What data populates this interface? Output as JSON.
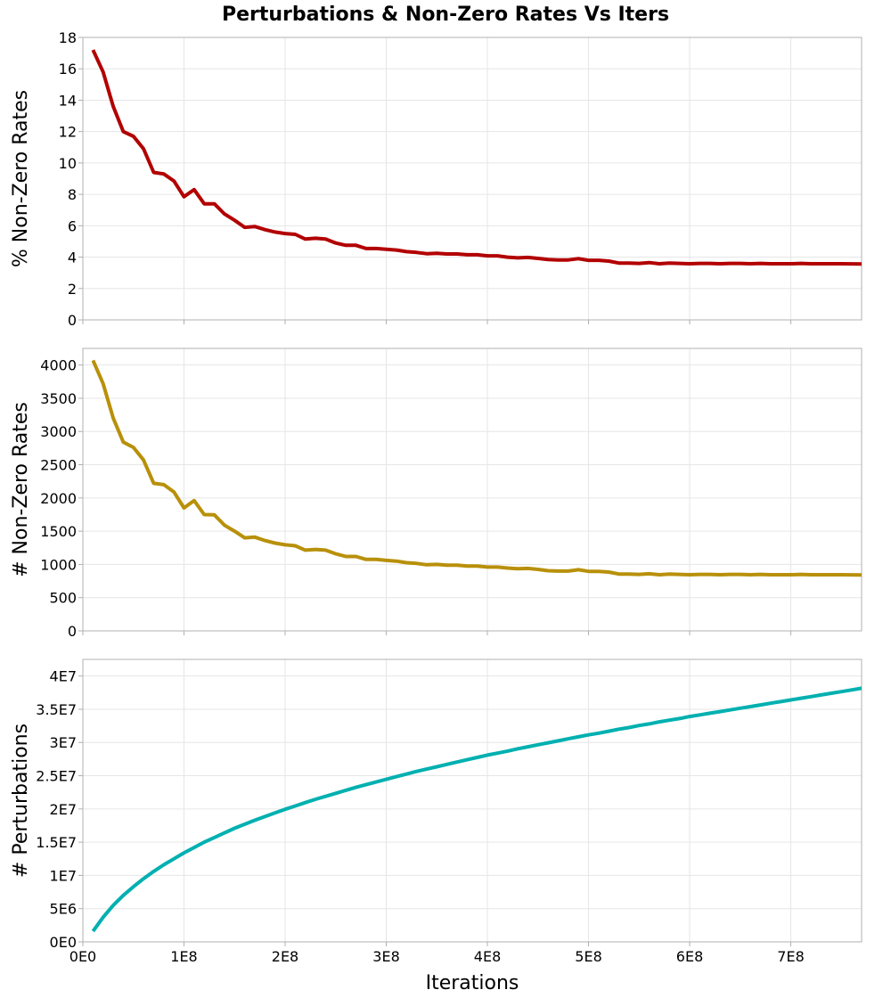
{
  "chart_data": {
    "type": "line",
    "title": "Perturbations & Non-Zero Rates Vs Iters",
    "xlabel": "Iterations",
    "xlim": [
      0,
      770000000
    ],
    "x_ticks": [
      0,
      100000000,
      200000000,
      300000000,
      400000000,
      500000000,
      600000000,
      700000000
    ],
    "x_tick_labels": [
      "0E0",
      "1E8",
      "2E8",
      "3E8",
      "4E8",
      "5E8",
      "6E8",
      "7E8"
    ],
    "x": [
      10000000,
      20000000,
      30000000,
      40000000,
      50000000,
      60000000,
      70000000,
      80000000,
      90000000,
      100000000,
      110000000,
      120000000,
      130000000,
      140000000,
      150000000,
      160000000,
      170000000,
      180000000,
      190000000,
      200000000,
      210000000,
      220000000,
      230000000,
      240000000,
      250000000,
      260000000,
      270000000,
      280000000,
      290000000,
      300000000,
      310000000,
      320000000,
      330000000,
      340000000,
      350000000,
      360000000,
      370000000,
      380000000,
      390000000,
      400000000,
      410000000,
      420000000,
      430000000,
      440000000,
      450000000,
      460000000,
      470000000,
      480000000,
      490000000,
      500000000,
      510000000,
      520000000,
      530000000,
      540000000,
      550000000,
      560000000,
      570000000,
      580000000,
      590000000,
      600000000,
      610000000,
      620000000,
      630000000,
      640000000,
      650000000,
      660000000,
      670000000,
      680000000,
      690000000,
      700000000,
      710000000,
      720000000,
      730000000,
      740000000,
      750000000,
      760000000,
      770000000
    ],
    "panels": [
      {
        "id": "pct-nonzero",
        "ylabel": "% Non-Zero Rates",
        "ylim": [
          0,
          18
        ],
        "y_ticks": [
          0,
          2,
          4,
          6,
          8,
          10,
          12,
          14,
          16,
          18
        ],
        "y_tick_labels": [
          "0",
          "2",
          "4",
          "6",
          "8",
          "10",
          "12",
          "14",
          "16",
          "18"
        ],
        "color": "#b20000",
        "series": [
          {
            "name": "% Non-Zero Rates",
            "values": [
              17.2,
              15.8,
              13.6,
              12.0,
              11.7,
              10.9,
              9.4,
              9.3,
              8.85,
              7.85,
              8.3,
              7.4,
              7.4,
              6.75,
              6.35,
              5.9,
              5.95,
              5.75,
              5.6,
              5.5,
              5.45,
              5.15,
              5.2,
              5.15,
              4.9,
              4.75,
              4.75,
              4.55,
              4.55,
              4.5,
              4.45,
              4.35,
              4.3,
              4.22,
              4.25,
              4.2,
              4.2,
              4.15,
              4.15,
              4.08,
              4.08,
              4.0,
              3.95,
              3.98,
              3.92,
              3.85,
              3.82,
              3.82,
              3.9,
              3.8,
              3.8,
              3.75,
              3.62,
              3.62,
              3.6,
              3.65,
              3.58,
              3.62,
              3.6,
              3.58,
              3.6,
              3.6,
              3.58,
              3.6,
              3.6,
              3.58,
              3.6,
              3.58,
              3.58,
              3.58,
              3.6,
              3.58,
              3.58,
              3.58,
              3.58,
              3.57,
              3.56
            ]
          }
        ]
      },
      {
        "id": "count-nonzero",
        "ylabel": "# Non-Zero Rates",
        "ylim": [
          0,
          4250
        ],
        "y_ticks": [
          0,
          500,
          1000,
          1500,
          2000,
          2500,
          3000,
          3500,
          4000
        ],
        "y_tick_labels": [
          "0",
          "500",
          "1000",
          "1500",
          "2000",
          "2500",
          "3000",
          "3500",
          "4000"
        ],
        "color": "#b8900a",
        "series": [
          {
            "name": "# Non-Zero Rates",
            "values": [
              4070,
              3720,
              3200,
              2840,
              2760,
              2570,
              2220,
              2200,
              2090,
              1850,
              1960,
              1750,
              1745,
              1590,
              1500,
              1400,
              1410,
              1360,
              1320,
              1295,
              1280,
              1215,
              1225,
              1215,
              1160,
              1120,
              1120,
              1075,
              1075,
              1060,
              1050,
              1025,
              1015,
              995,
              1000,
              990,
              990,
              975,
              975,
              960,
              960,
              945,
              935,
              940,
              925,
              905,
              900,
              900,
              920,
              895,
              895,
              885,
              855,
              855,
              850,
              860,
              845,
              855,
              850,
              845,
              850,
              850,
              845,
              850,
              850,
              845,
              850,
              845,
              845,
              845,
              850,
              845,
              845,
              845,
              845,
              843,
              840
            ]
          }
        ]
      },
      {
        "id": "perturbations",
        "ylabel": "# Perturbations",
        "ylim": [
          0,
          42500000
        ],
        "y_ticks": [
          0,
          5000000,
          10000000,
          15000000,
          20000000,
          25000000,
          30000000,
          35000000,
          40000000
        ],
        "y_tick_labels": [
          "0E0",
          "5E6",
          "1E7",
          "1.5E7",
          "2E7",
          "2.5E7",
          "3E7",
          "3.5E7",
          "4E7"
        ],
        "color": "#00b0b0",
        "series": [
          {
            "name": "# Perturbations",
            "values": [
              1600000,
              3700000,
              5500000,
              7000000,
              8300000,
              9500000,
              10600000,
              11600000,
              12500000,
              13400000,
              14200000,
              15000000,
              15700000,
              16400000,
              17100000,
              17700000,
              18300000,
              18850000,
              19400000,
              19950000,
              20450000,
              20950000,
              21450000,
              21900000,
              22350000,
              22800000,
              23250000,
              23650000,
              24050000,
              24450000,
              24850000,
              25250000,
              25650000,
              26000000,
              26350000,
              26700000,
              27050000,
              27400000,
              27750000,
              28100000,
              28400000,
              28700000,
              29050000,
              29350000,
              29650000,
              29950000,
              30250000,
              30550000,
              30850000,
              31150000,
              31400000,
              31700000,
              32000000,
              32250000,
              32550000,
              32800000,
              33100000,
              33350000,
              33600000,
              33900000,
              34150000,
              34400000,
              34650000,
              34900000,
              35150000,
              35400000,
              35650000,
              35900000,
              36150000,
              36400000,
              36650000,
              36900000,
              37150000,
              37400000,
              37650000,
              37900000,
              38150000
            ]
          }
        ]
      }
    ]
  }
}
